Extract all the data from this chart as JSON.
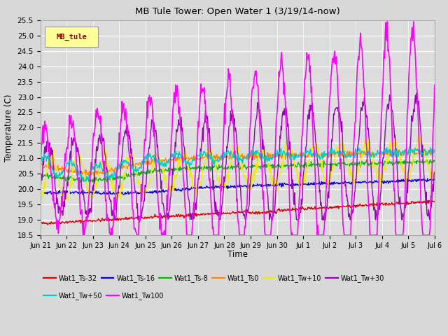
{
  "title": "MB Tule Tower: Open Water 1 (3/19/14-now)",
  "ylabel": "Temperature (C)",
  "xlabel": "Time",
  "background_color": "#d8d8d8",
  "plot_bg_color": "#dcdcdc",
  "ylim": [
    18.5,
    25.5
  ],
  "yticks": [
    18.5,
    19.0,
    19.5,
    20.0,
    20.5,
    21.0,
    21.5,
    22.0,
    22.5,
    23.0,
    23.5,
    24.0,
    24.5,
    25.0,
    25.5
  ],
  "xtick_labels": [
    "Jun 21",
    "Jun 22",
    "Jun 23",
    "Jun 24",
    "Jun 25",
    "Jun 26",
    "Jun 27",
    "Jun 28",
    "Jun 29",
    "Jun 30",
    "Jul 1",
    "Jul 2",
    "Jul 3",
    "Jul 4",
    "Jul 5",
    "Jul 6"
  ],
  "series": {
    "Wat1_Ts-32": {
      "color": "#dd0000",
      "lw": 1.0
    },
    "Wat1_Ts-16": {
      "color": "#0000cc",
      "lw": 1.0
    },
    "Wat1_Ts-8": {
      "color": "#00bb00",
      "lw": 1.0
    },
    "Wat1_Ts0": {
      "color": "#ff8800",
      "lw": 1.0
    },
    "Wat1_Tw+10": {
      "color": "#eeee00",
      "lw": 1.0
    },
    "Wat1_Tw+30": {
      "color": "#9900bb",
      "lw": 1.0
    },
    "Wat1_Tw+50": {
      "color": "#00cccc",
      "lw": 1.0
    },
    "Wat1_Tw100": {
      "color": "#ff00ff",
      "lw": 1.2
    }
  },
  "legend_label": "MB_tule",
  "legend_box_color": "#ffff99",
  "legend_text_color": "#880000",
  "n_points": 720
}
